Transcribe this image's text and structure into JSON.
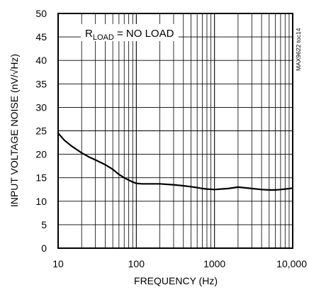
{
  "chart_data": {
    "type": "line",
    "x_scale": "log",
    "xlim": [
      10,
      10000
    ],
    "ylim": [
      0,
      50
    ],
    "grid": true,
    "xlabel": "FREQUENCY (Hz)",
    "ylabel": "INPUT VOLTAGE NOISE (nV/√Hz)",
    "x_tick_labels": [
      "10",
      "100",
      "1000",
      "10,000"
    ],
    "y_tick_labels": [
      "0",
      "5",
      "10",
      "15",
      "20",
      "25",
      "30",
      "35",
      "40",
      "45",
      "50"
    ],
    "annotation": {
      "prefix": "R",
      "subscript": "LOAD",
      "suffix": " = NO LOAD"
    },
    "figure_id": "MAX9622 toc14",
    "series": [
      {
        "color": "#000000",
        "x": [
          10,
          12,
          15,
          20,
          25,
          30,
          40,
          50,
          60,
          70,
          80,
          90,
          100,
          120,
          150,
          200,
          300,
          400,
          500,
          600,
          700,
          800,
          1000,
          1200,
          1500,
          2000,
          3000,
          4000,
          5000,
          6000,
          7000,
          8000,
          10000
        ],
        "y": [
          24.5,
          23.0,
          21.7,
          20.3,
          19.4,
          18.8,
          17.8,
          16.8,
          15.7,
          15.0,
          14.5,
          14.1,
          13.8,
          13.7,
          13.7,
          13.7,
          13.5,
          13.3,
          13.1,
          12.9,
          12.7,
          12.6,
          12.5,
          12.6,
          12.7,
          13.0,
          12.7,
          12.5,
          12.4,
          12.4,
          12.5,
          12.6,
          12.8
        ]
      }
    ]
  }
}
